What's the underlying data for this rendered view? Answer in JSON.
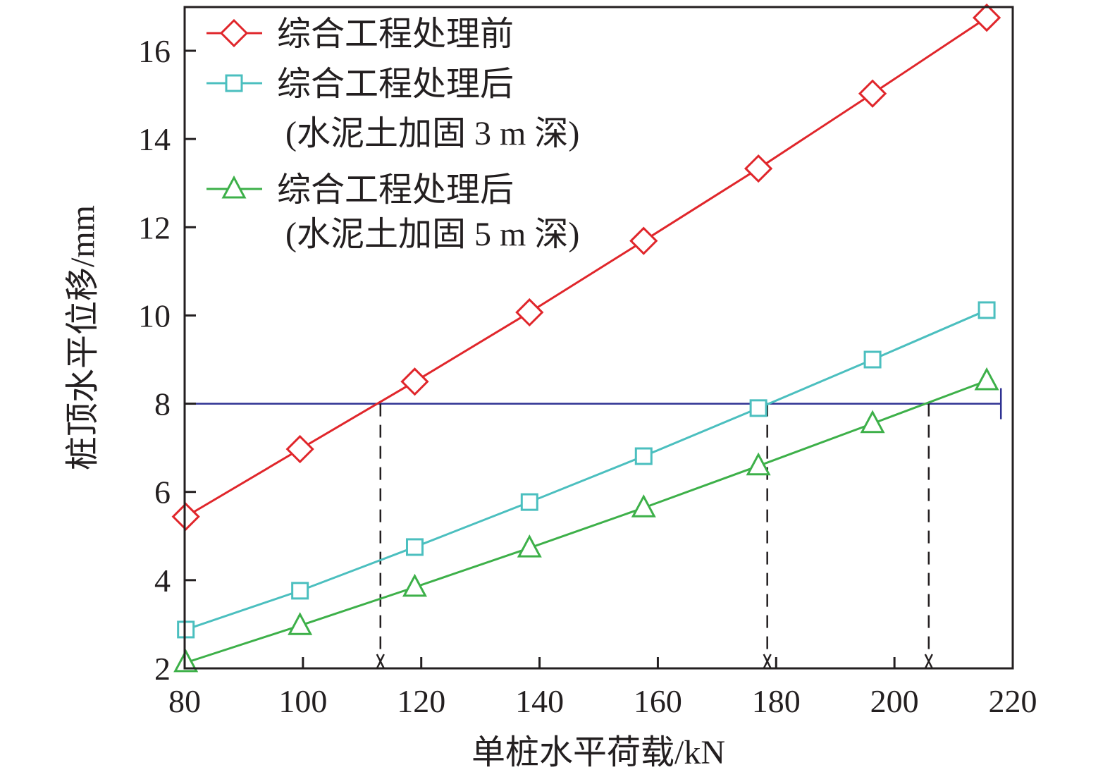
{
  "chart_data": {
    "type": "line",
    "title": "",
    "xlabel": "单桩水平荷载/kN",
    "ylabel": "桩顶水平位移/mm",
    "xlim": [
      80,
      220
    ],
    "ylim": [
      2,
      17
    ],
    "xticks": [
      80,
      100,
      120,
      140,
      160,
      180,
      200,
      220
    ],
    "yticks": [
      2,
      4,
      6,
      8,
      10,
      12,
      14,
      16
    ],
    "grid": false,
    "legend_position": "top-left",
    "series": [
      {
        "name": "综合工程处理前",
        "name_line2": "",
        "color": "#e0262b",
        "marker": "diamond",
        "x": [
          80.2,
          99.5,
          118.9,
          138.3,
          157.6,
          177.0,
          196.3,
          215.6
        ],
        "y": [
          5.44,
          6.97,
          8.5,
          10.07,
          11.69,
          13.33,
          15.03,
          16.75
        ]
      },
      {
        "name": "综合工程处理后",
        "name_line2": "(水泥土加固 3 m 深)",
        "color": "#4bbfbf",
        "marker": "square",
        "x": [
          80.2,
          99.5,
          118.9,
          138.3,
          157.6,
          177.0,
          196.3,
          215.6
        ],
        "y": [
          2.88,
          3.76,
          4.75,
          5.77,
          6.81,
          7.9,
          9.0,
          10.12
        ]
      },
      {
        "name": "综合工程处理后",
        "name_line2": "(水泥土加固 5 m 深)",
        "color": "#3db049",
        "marker": "triangle",
        "x": [
          80.2,
          99.5,
          118.9,
          138.3,
          157.6,
          177.0,
          196.3,
          215.6
        ],
        "y": [
          2.13,
          2.97,
          3.84,
          4.73,
          5.64,
          6.59,
          7.55,
          8.52
        ]
      }
    ],
    "reference_line": {
      "y": 8,
      "x_range": [
        80,
        218
      ],
      "color": "#2e3192"
    },
    "intersections_x": [
      113.1,
      178.5,
      205.8
    ]
  }
}
